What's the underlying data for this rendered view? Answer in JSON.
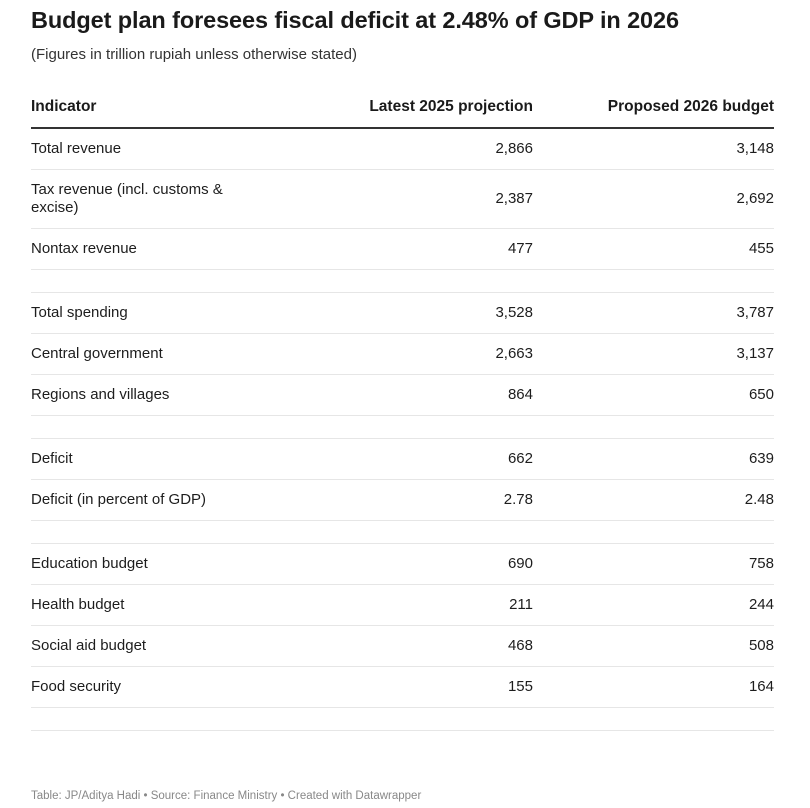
{
  "header": {
    "title": "Budget plan foresees fiscal deficit at 2.48% of GDP in 2026",
    "subtitle": "(Figures in trillion rupiah unless otherwise stated)"
  },
  "chart_data": {
    "type": "table",
    "columns": [
      "Indicator",
      "Latest 2025 projection",
      "Proposed 2026 budget"
    ],
    "groups": [
      [
        {
          "label": "Total revenue",
          "v2025": "2,866",
          "v2026": "3,148"
        },
        {
          "label": "Tax revenue (incl. customs & excise)",
          "v2025": "2,387",
          "v2026": "2,692"
        },
        {
          "label": "Nontax revenue",
          "v2025": "477",
          "v2026": "455"
        }
      ],
      [
        {
          "label": "Total spending",
          "v2025": "3,528",
          "v2026": "3,787"
        },
        {
          "label": "Central government",
          "v2025": "2,663",
          "v2026": "3,137"
        },
        {
          "label": "Regions and villages",
          "v2025": "864",
          "v2026": "650"
        }
      ],
      [
        {
          "label": "Deficit",
          "v2025": "662",
          "v2026": "639"
        },
        {
          "label": "Deficit (in percent of GDP)",
          "v2025": "2.78",
          "v2026": "2.48"
        }
      ],
      [
        {
          "label": "Education budget",
          "v2025": "690",
          "v2026": "758"
        },
        {
          "label": "Health budget",
          "v2025": "211",
          "v2026": "244"
        },
        {
          "label": "Social aid budget",
          "v2025": "468",
          "v2026": "508"
        },
        {
          "label": "Food security",
          "v2025": "155",
          "v2026": "164"
        }
      ]
    ]
  },
  "footer": {
    "credit": "Table: JP/Aditya Hadi • Source: Finance Ministry • Created with Datawrapper"
  }
}
